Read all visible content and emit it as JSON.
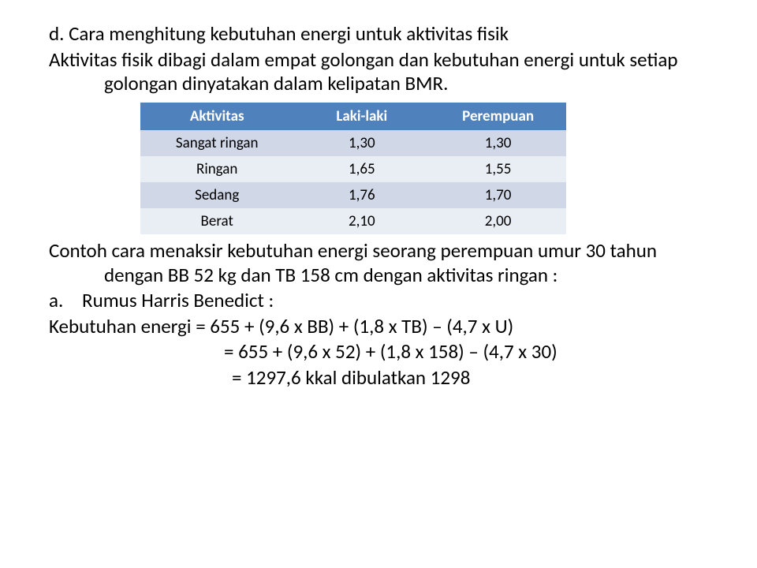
{
  "heading": "d. Cara menghitung kebutuhan energi untuk aktivitas fisik",
  "intro": "Aktivitas fisik dibagi dalam empat golongan dan kebutuhan energi untuk setiap golongan dinyatakan dalam kelipatan BMR.",
  "table": {
    "header_bg": "#4f81bd",
    "header_fg": "#ffffff",
    "row_odd_bg": "#d0d8e8",
    "row_even_bg": "#e9edf4",
    "cell_fg": "#000000",
    "col_widths": [
      "36%",
      "32%",
      "32%"
    ],
    "columns": [
      "Aktivitas",
      "Laki-laki",
      "Perempuan"
    ],
    "rows": [
      [
        "Sangat ringan",
        "1,30",
        "1,30"
      ],
      [
        "Ringan",
        "1,65",
        "1,55"
      ],
      [
        "Sedang",
        "1,76",
        "1,70"
      ],
      [
        "Berat",
        "2,10",
        "2,00"
      ]
    ]
  },
  "example_intro": "Contoh cara menaksir kebutuhan energi seorang perempuan umur 30 tahun dengan BB 52 kg dan TB 158 cm dengan aktivitas ringan :",
  "item_a_marker": "a.",
  "item_a_text": "Rumus Harris Benedict :",
  "eq": {
    "line1": "Kebutuhan energi = 655 + (9,6 x BB) + (1,8 x TB) – (4,7 x U)",
    "line2": "= 655 + (9,6 x 52) + (1,8 x 158) – (4,7 x 30)",
    "line3": "= 1297,6 kkal dibulatkan 1298"
  }
}
